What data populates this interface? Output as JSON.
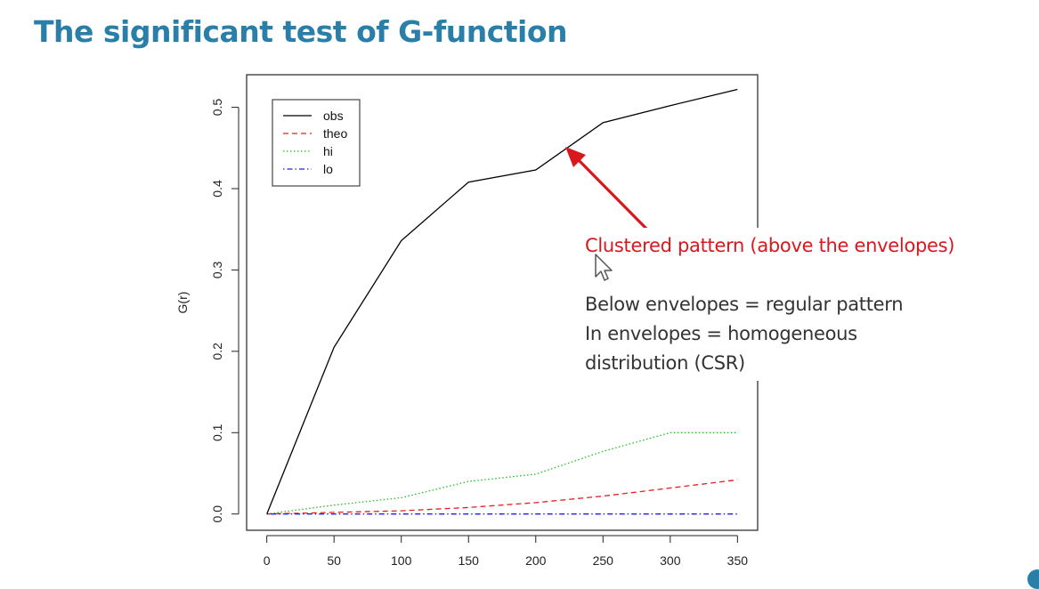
{
  "slide": {
    "title": "The significant test of G-function"
  },
  "annotations": {
    "callout": "Clustered pattern (above the envelopes)",
    "note_line_1": "Below envelopes = regular pattern",
    "note_line_2": "In envelopes = homogeneous",
    "note_line_3": "distribution (CSR)",
    "callout_color": "#d9181e",
    "icons": [
      "red-arrow-icon",
      "mouse-cursor-icon"
    ]
  },
  "chart_data": {
    "type": "line",
    "title": "",
    "xlabel": "",
    "ylabel": "G(r)",
    "x": [
      0,
      50,
      100,
      150,
      200,
      250,
      300,
      350
    ],
    "xlim": [
      -15,
      365
    ],
    "ylim": [
      -0.02,
      0.54
    ],
    "xticks": [
      "0",
      "50",
      "100",
      "150",
      "200",
      "250",
      "300",
      "350"
    ],
    "yticks": [
      "0.0",
      "0.1",
      "0.2",
      "0.3",
      "0.4",
      "0.5"
    ],
    "ytick_values": [
      0.0,
      0.1,
      0.2,
      0.3,
      0.4,
      0.5
    ],
    "grid": false,
    "legend_position": "top-left",
    "series": [
      {
        "name": "obs",
        "color": "#000000",
        "dash": "solid",
        "values": [
          0.0,
          0.205,
          0.336,
          0.408,
          0.423,
          0.481,
          0.502,
          0.522
        ]
      },
      {
        "name": "theo",
        "color": "#df2020",
        "dash": "dashed",
        "values": [
          0.0,
          0.002,
          0.004,
          0.008,
          0.014,
          0.022,
          0.032,
          0.042
        ]
      },
      {
        "name": "hi",
        "color": "#1fbf1f",
        "dash": "dotted",
        "values": [
          0.0,
          0.011,
          0.02,
          0.04,
          0.049,
          0.077,
          0.1,
          0.1
        ]
      },
      {
        "name": "lo",
        "color": "#2020df",
        "dash": "dotdash",
        "values": [
          0.0,
          0.0,
          0.0,
          0.0,
          0.0,
          0.0,
          0.0,
          0.0
        ]
      }
    ]
  }
}
